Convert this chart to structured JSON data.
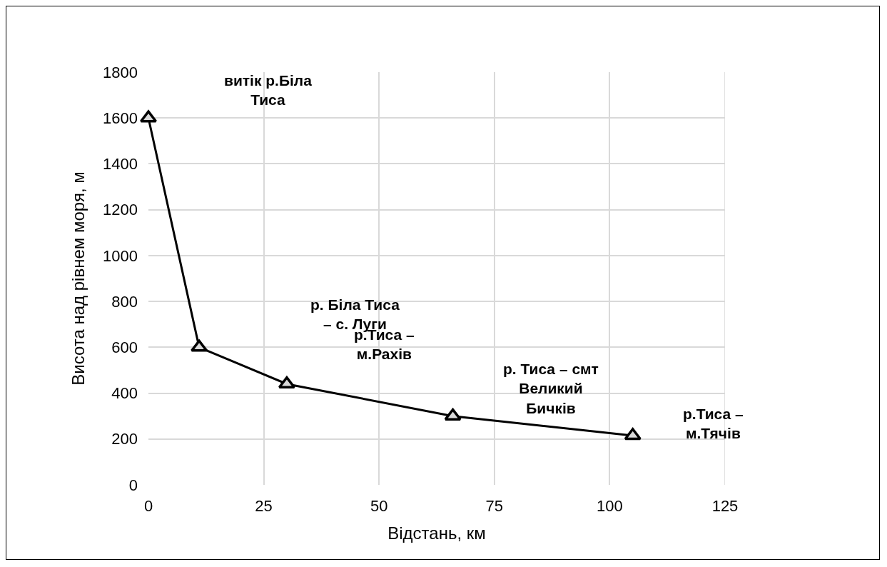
{
  "chart_data": {
    "type": "line",
    "xlabel": "Відстань, км",
    "ylabel": "Висота над рівнем моря, м",
    "x": [
      0,
      11,
      30,
      66,
      105
    ],
    "series": [
      {
        "color": "#000000",
        "values": [
          1600,
          600,
          440,
          300,
          215
        ]
      }
    ],
    "xlim": [
      0,
      125
    ],
    "xticks": [
      0,
      25,
      50,
      75,
      100,
      125
    ],
    "ylim": [
      0,
      1800
    ],
    "yticks": [
      0,
      200,
      400,
      600,
      800,
      1000,
      1200,
      1400,
      1600,
      1800
    ],
    "grid": true,
    "marker": "triangle",
    "line_style": "solid",
    "annotations": [
      "витік р.Біла Тиса",
      "р. Біла Тиса – с. Луги",
      "р.Тиса – м.Рахів",
      "р. Тиса – смт Великий Бичків",
      "р.Тиса – м.Тячів"
    ]
  }
}
